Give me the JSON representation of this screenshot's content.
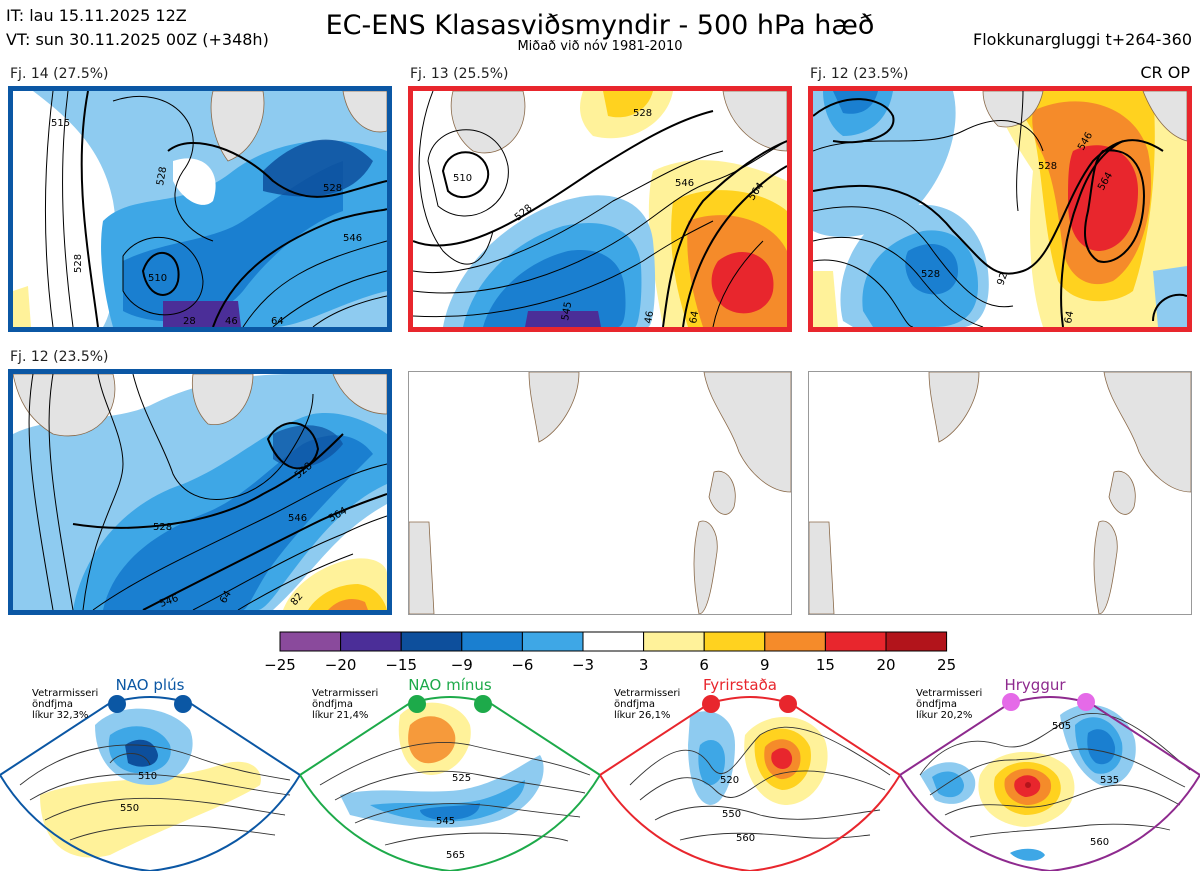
{
  "header": {
    "init_time": "IT: lau 15.11.2025 12Z",
    "valid_time": "VT: sun 30.11.2025 00Z  (+348h)",
    "title": "EC-ENS Klasasviðsmyndir - 500 hPa hæð",
    "subtitle": "Miðað við nóv 1981-2010",
    "window": "Flokkunargluggi t+264-360",
    "cr_op": "CR OP"
  },
  "colors": {
    "nao_plus": "#0b57a4",
    "nao_minus": "#1daa4a",
    "blocking": "#e8262d",
    "ridge": "#8e2a8e",
    "land": "#e3e3e3",
    "coast": "#8a6a4a"
  },
  "panels": [
    {
      "label": "Fj. 14 (27.5%)",
      "regime": "NAO plús",
      "contours": [
        "515",
        "528",
        "528",
        "510",
        "546",
        "528",
        "28",
        "46",
        "64"
      ]
    },
    {
      "label": "Fj. 13 (25.5%)",
      "regime": "Fyrirstaða",
      "contours": [
        "528",
        "510",
        "528",
        "546",
        "564",
        "545",
        "46",
        "64"
      ]
    },
    {
      "label": "Fj. 12 (23.5%)",
      "regime": "Fyrirstaða",
      "contours": [
        "528",
        "546",
        "564",
        "528",
        "92",
        "64"
      ]
    },
    {
      "label": "Fj. 12 (23.5%)",
      "regime": "NAO plús",
      "contours": [
        "528",
        "528",
        "546",
        "564",
        "546",
        "64",
        "82"
      ]
    }
  ],
  "chart_data": {
    "type": "heatmap",
    "title": "EC-ENS Klasasviðsmyndir - 500 hPa hæð",
    "subtitle": "Miðað við nóv 1981-2010",
    "colorbar": {
      "ticks": [
        "−25",
        "−20",
        "−15",
        "−9",
        "−6",
        "−3",
        "3",
        "6",
        "9",
        "15",
        "20",
        "25"
      ],
      "bounds": [
        -25,
        -20,
        -15,
        -9,
        -6,
        -3,
        3,
        6,
        9,
        15,
        20,
        25
      ],
      "colors": [
        "#8a4a9c",
        "#4b2e98",
        "#0d4f9c",
        "#1a7fd0",
        "#3ea7e6",
        "#8ecbf0",
        "#ffffff",
        "#fff29a",
        "#ffd21f",
        "#f58b2a",
        "#e8262d",
        "#b2141b"
      ]
    },
    "clusters": [
      {
        "name": "Fj. 14",
        "percent": 27.5,
        "regime": "NAO plús"
      },
      {
        "name": "Fj. 13",
        "percent": 25.5,
        "regime": "Fyrirstaða"
      },
      {
        "name": "Fj. 12",
        "percent": 23.5,
        "regime": "Fyrirstaða"
      },
      {
        "name": "Fj. 12",
        "percent": 23.5,
        "regime": "NAO plús"
      }
    ]
  },
  "regimes": [
    {
      "name": "NAO plús",
      "note": [
        "Vetrarmisseri",
        "öndfjma",
        "líkur 32,3%"
      ],
      "color": "#0b57a4",
      "probability": 32.3,
      "contours": [
        "510",
        "550"
      ]
    },
    {
      "name": "NAO mínus",
      "note": [
        "Vetrarmisseri",
        "öndfjma",
        "líkur 21,4%"
      ],
      "color": "#1daa4a",
      "probability": 21.4,
      "contours": [
        "525",
        "545",
        "565"
      ]
    },
    {
      "name": "Fyrirstaða",
      "note": [
        "Vetrarmisseri",
        "öndfjma",
        "líkur 26,1%"
      ],
      "color": "#e8262d",
      "probability": 26.1,
      "contours": [
        "520",
        "550",
        "560"
      ]
    },
    {
      "name": "Hryggur",
      "note": [
        "Vetrarmisseri",
        "öndfjma",
        "líkur 20,2%"
      ],
      "color": "#8e2a8e",
      "probability": 20.2,
      "contours": [
        "505",
        "535",
        "560"
      ]
    }
  ]
}
